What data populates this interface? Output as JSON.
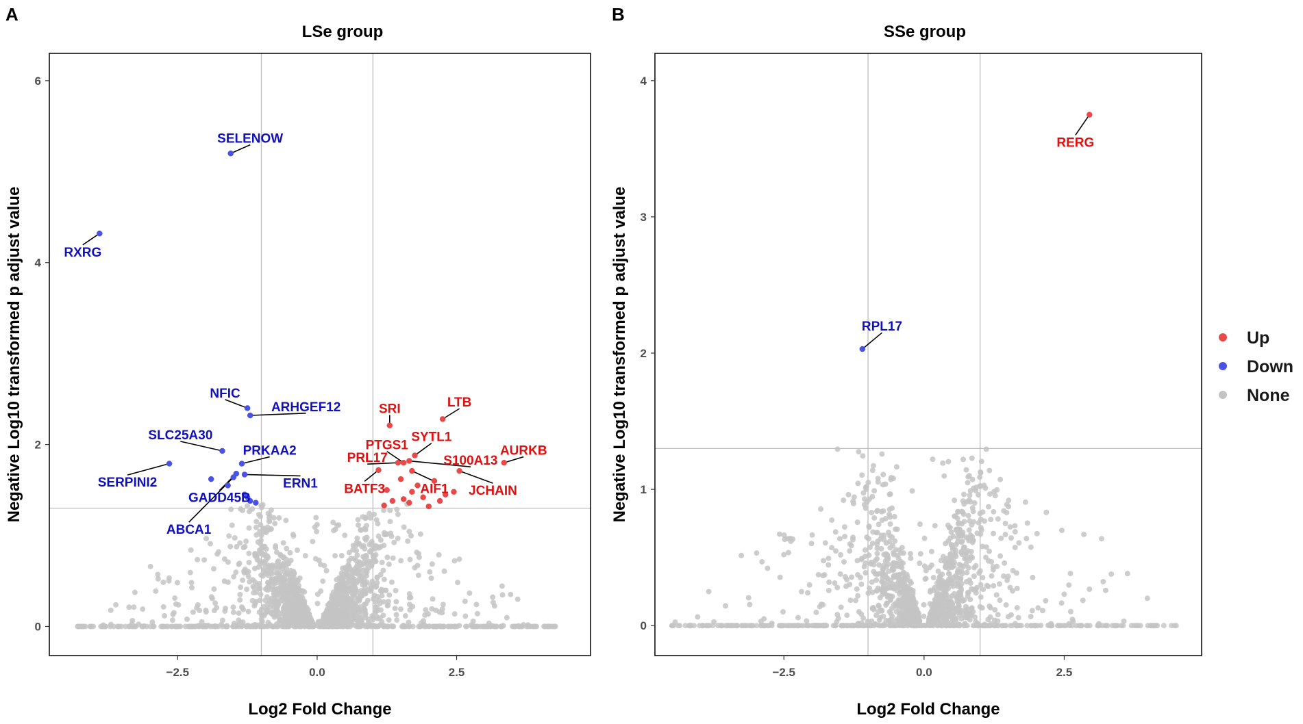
{
  "chart_data": [
    {
      "panel": "A",
      "type": "scatter",
      "title": "LSe group",
      "xlabel": "Log2 Fold Change",
      "ylabel": "Negative Log10 transformed p adjust value",
      "xlim": [
        -4.8,
        4.9
      ],
      "ylim": [
        -0.32,
        6.3
      ],
      "xticks": [
        -2.5,
        0.0,
        2.5
      ],
      "xtick_labels": [
        "-2.5",
        "0.0",
        "2.5"
      ],
      "yticks": [
        0,
        2,
        4,
        6
      ],
      "ytick_labels": [
        "0",
        "2",
        "4",
        "6"
      ],
      "thresholds": {
        "fc": [
          -1,
          1
        ],
        "p": 1.3
      },
      "background": {
        "seed": 7,
        "n_inner": 1400,
        "n_outer": 320,
        "x_span": 4.3,
        "y_max": 1.35
      },
      "series": [
        {
          "name": "Down",
          "color": "#4a52e6",
          "label_color": "#1010c0",
          "points": [
            {
              "x": -3.9,
              "y": 4.32,
              "label": "RXRG",
              "lx": -4.2,
              "ly": 4.12
            },
            {
              "x": -1.55,
              "y": 5.2,
              "label": "SELENOW",
              "lx": -1.2,
              "ly": 5.37
            },
            {
              "x": -1.25,
              "y": 2.4,
              "label": "NFIC",
              "lx": -1.65,
              "ly": 2.57
            },
            {
              "x": -1.2,
              "y": 2.32,
              "label": "ARHGEF12",
              "lx": -0.2,
              "ly": 2.42
            },
            {
              "x": -1.7,
              "y": 1.93,
              "label": "SLC25A30",
              "lx": -2.45,
              "ly": 2.11
            },
            {
              "x": -1.35,
              "y": 1.79,
              "label": "PRKAA2",
              "lx": -0.85,
              "ly": 1.94
            },
            {
              "x": -2.65,
              "y": 1.79,
              "label": "SERPINI2",
              "lx": -3.4,
              "ly": 1.59
            },
            {
              "x": -1.3,
              "y": 1.67,
              "label": "ERN1",
              "lx": -0.3,
              "ly": 1.58
            },
            {
              "x": -1.45,
              "y": 1.68,
              "label": "GADD45B",
              "lx": -1.75,
              "ly": 1.42
            },
            {
              "x": -1.5,
              "y": 1.64,
              "label": "ABCA1",
              "lx": -2.3,
              "ly": 1.07
            },
            {
              "x": -1.9,
              "y": 1.62
            },
            {
              "x": -1.6,
              "y": 1.55
            },
            {
              "x": -1.3,
              "y": 1.45
            },
            {
              "x": -1.2,
              "y": 1.38
            },
            {
              "x": -1.1,
              "y": 1.36
            },
            {
              "x": -1.25,
              "y": 1.42
            }
          ]
        },
        {
          "name": "Up",
          "color": "#e84a4a",
          "label_color": "#e01010",
          "points": [
            {
              "x": 1.3,
              "y": 2.21,
              "label": "SRI",
              "lx": 1.3,
              "ly": 2.4
            },
            {
              "x": 2.25,
              "y": 2.28,
              "label": "LTB",
              "lx": 2.55,
              "ly": 2.47
            },
            {
              "x": 1.55,
              "y": 1.8,
              "label": "PTGS1",
              "lx": 1.25,
              "ly": 2.0
            },
            {
              "x": 1.75,
              "y": 1.88,
              "label": "SYTL1",
              "lx": 2.05,
              "ly": 2.09
            },
            {
              "x": 1.45,
              "y": 1.8,
              "label": "PRL17",
              "lx": 0.9,
              "ly": 1.86
            },
            {
              "x": 1.65,
              "y": 1.82,
              "label": "S100A13",
              "lx": 2.75,
              "ly": 1.83
            },
            {
              "x": 3.35,
              "y": 1.8,
              "label": "AURKB",
              "lx": 3.7,
              "ly": 1.94
            },
            {
              "x": 1.1,
              "y": 1.72,
              "label": "BATF3",
              "lx": 0.85,
              "ly": 1.52
            },
            {
              "x": 1.7,
              "y": 1.71,
              "label": "AIF1",
              "lx": 2.1,
              "ly": 1.52
            },
            {
              "x": 2.55,
              "y": 1.71,
              "label": "JCHAIN",
              "lx": 3.15,
              "ly": 1.5
            },
            {
              "x": 1.8,
              "y": 1.55
            },
            {
              "x": 2.1,
              "y": 1.6
            },
            {
              "x": 2.3,
              "y": 1.45
            },
            {
              "x": 2.45,
              "y": 1.48
            },
            {
              "x": 1.25,
              "y": 1.5
            },
            {
              "x": 1.35,
              "y": 1.38
            },
            {
              "x": 1.55,
              "y": 1.4
            },
            {
              "x": 1.65,
              "y": 1.36
            },
            {
              "x": 1.9,
              "y": 1.42
            },
            {
              "x": 2.0,
              "y": 1.32
            },
            {
              "x": 2.2,
              "y": 1.38
            },
            {
              "x": 1.2,
              "y": 1.33
            },
            {
              "x": 1.5,
              "y": 1.62
            },
            {
              "x": 1.7,
              "y": 1.48
            }
          ]
        }
      ]
    },
    {
      "panel": "B",
      "type": "scatter",
      "title": "SSe group",
      "xlabel": "Log2 Fold Change",
      "ylabel": "Negative Log10 transformed p adjust value",
      "xlim": [
        -4.8,
        4.95
      ],
      "ylim": [
        -0.22,
        4.2
      ],
      "xticks": [
        -2.5,
        0.0,
        2.5
      ],
      "xtick_labels": [
        "-2.5",
        "0.0",
        "2.5"
      ],
      "yticks": [
        0,
        1,
        2,
        3,
        4
      ],
      "ytick_labels": [
        "0",
        "1",
        "2",
        "3",
        "4"
      ],
      "thresholds": {
        "fc": [
          -1,
          1
        ],
        "p": 1.3
      },
      "background": {
        "seed": 21,
        "n_inner": 1000,
        "n_outer": 260,
        "x_span": 4.5,
        "y_max": 1.3
      },
      "series": [
        {
          "name": "Down",
          "color": "#4a52e6",
          "label_color": "#1010c0",
          "points": [
            {
              "x": -1.1,
              "y": 2.03,
              "label": "RPL17",
              "lx": -0.75,
              "ly": 2.2
            }
          ]
        },
        {
          "name": "Up",
          "color": "#e84a4a",
          "label_color": "#e01010",
          "points": [
            {
              "x": 2.95,
              "y": 3.75,
              "label": "RERG",
              "lx": 2.7,
              "ly": 3.55
            }
          ]
        }
      ]
    }
  ],
  "legend": {
    "position": "right",
    "items": [
      {
        "label": "Up",
        "color": "#e84a4a"
      },
      {
        "label": "Down",
        "color": "#4a52e6"
      },
      {
        "label": "None",
        "color": "#c4c4c4"
      }
    ]
  },
  "colors": {
    "none": "#c4c4c4",
    "frame": "#000000",
    "threshold": "#bdbdbd"
  }
}
